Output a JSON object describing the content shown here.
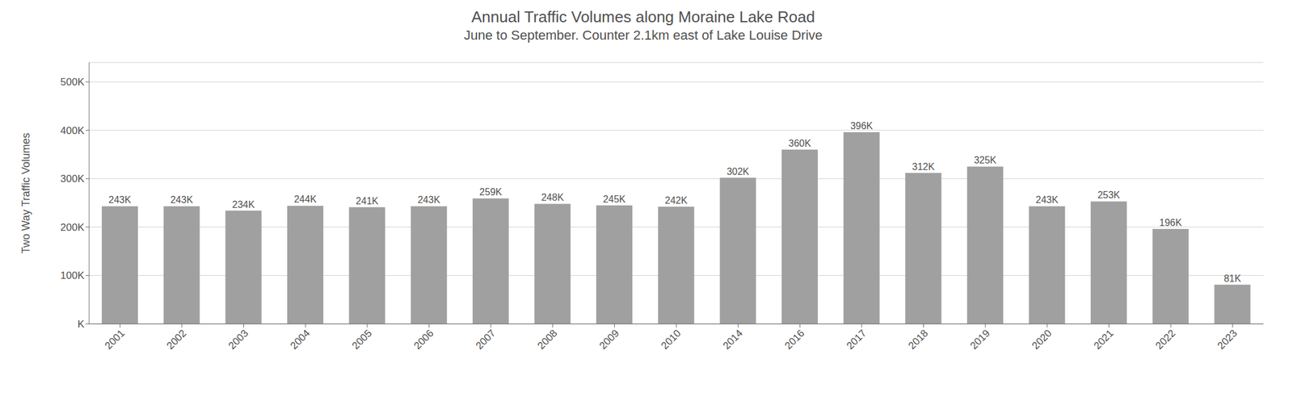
{
  "chart_data": {
    "type": "bar",
    "title": "Annual Traffic Volumes along Moraine Lake Road",
    "subtitle": "June to September. Counter 2.1km east of Lake Louise Drive",
    "y_label": "Two Way Traffic Volumes",
    "categories": [
      "2001",
      "2002",
      "2003",
      "2004",
      "2005",
      "2006",
      "2007",
      "2008",
      "2009",
      "2010",
      "2014",
      "2016",
      "2017",
      "2018",
      "2019",
      "2020",
      "2021",
      "2022",
      "2023"
    ],
    "values": [
      243000,
      243000,
      234000,
      244000,
      241000,
      243000,
      259000,
      248000,
      245000,
      242000,
      302000,
      360000,
      396000,
      312000,
      325000,
      243000,
      253000,
      196000,
      81000
    ],
    "value_labels": [
      "243K",
      "243K",
      "234K",
      "244K",
      "241K",
      "243K",
      "259K",
      "248K",
      "245K",
      "242K",
      "302K",
      "360K",
      "396K",
      "312K",
      "325K",
      "243K",
      "253K",
      "196K",
      "81K"
    ],
    "color": "#a0a0a0",
    "ylim": [
      0,
      540000
    ],
    "yticks": [
      {
        "value": 0,
        "label": "K"
      },
      {
        "value": 100000,
        "label": "100K"
      },
      {
        "value": 200000,
        "label": "200K"
      },
      {
        "value": 300000,
        "label": "300K"
      },
      {
        "value": 400000,
        "label": "400K"
      },
      {
        "value": 500000,
        "label": "500K"
      }
    ],
    "grid": true,
    "data_labels": true
  }
}
